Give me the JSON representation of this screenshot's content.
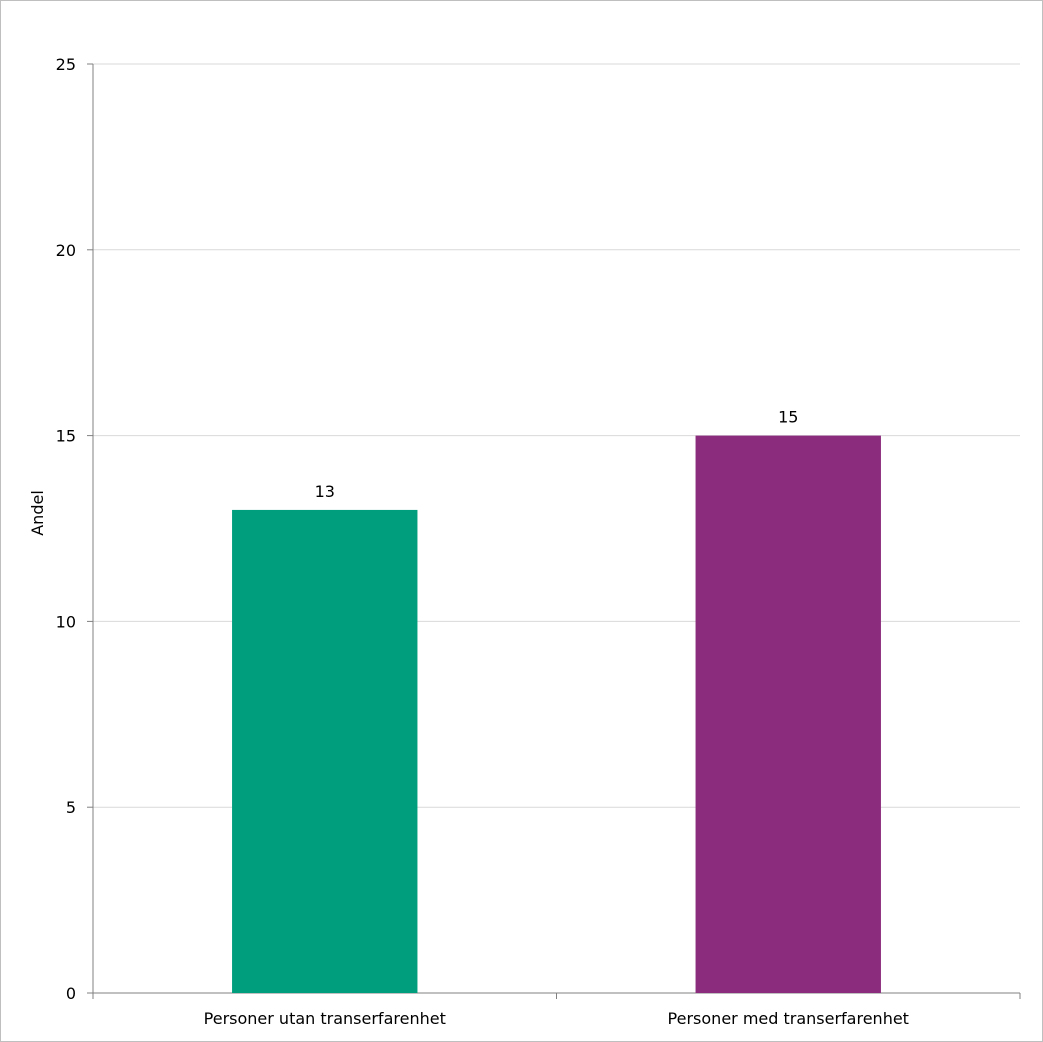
{
  "chart_data": {
    "type": "bar",
    "categories": [
      "Personer utan transerfarenhet",
      "Personer med transerfarenhet"
    ],
    "values": [
      13,
      15
    ],
    "data_labels": [
      "13",
      "15"
    ],
    "colors": [
      "#009e7d",
      "#8b2c7c"
    ],
    "title": "",
    "xlabel": "",
    "ylabel": "Andel",
    "ylim": [
      0,
      25
    ],
    "yticks": [
      0,
      5,
      10,
      15,
      20,
      25
    ],
    "ytick_labels": [
      "0",
      "5",
      "10",
      "15",
      "20",
      "25"
    ],
    "grid": true,
    "legend": "none"
  }
}
